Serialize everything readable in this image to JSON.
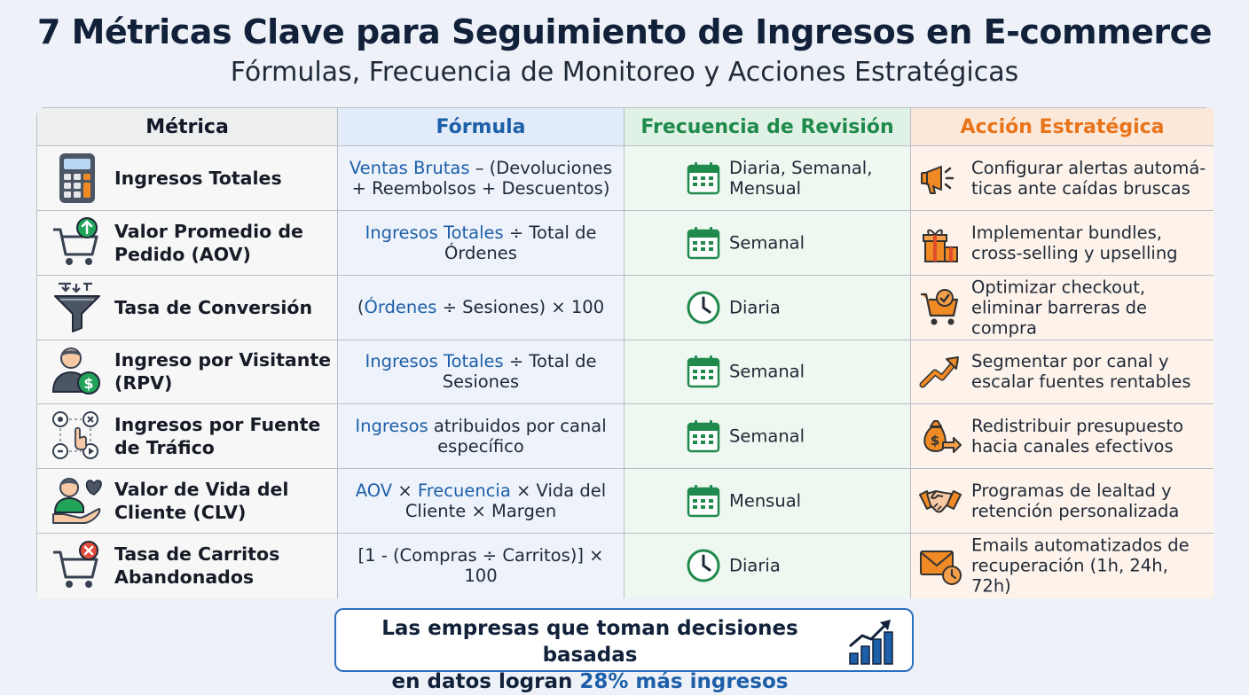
{
  "header": {
    "title": "7 Métricas Clave para Seguimiento de Ingresos en E-commerce",
    "subtitle": "Fórmulas, Frecuencia de Monitoreo y Acciones Estratégicas"
  },
  "table": {
    "columns": [
      "Métrica",
      "Fórmula",
      "Frecuencia de Revisión",
      "Acción Estratégica"
    ],
    "rows": [
      {
        "metric": "Ingresos Totales",
        "metric_icon": "calculator-icon",
        "formula_blue": "Ventas Brutas",
        "formula_rest": " – (Devoluciones + Reembolsos + Descuentos)",
        "frequency": "Diaria, Semanal, Mensual",
        "frequency_icon": "calendar-icon",
        "action": "Configurar alertas automá­ticas ante caídas bruscas",
        "action_icon": "megaphone-icon"
      },
      {
        "metric": "Valor Promedio de Pedido (AOV)",
        "metric_icon": "cart-up-arrow-icon",
        "formula_blue": "Ingresos Totales",
        "formula_rest": " ÷ Total de Órdenes",
        "frequency": "Semanal",
        "frequency_icon": "calendar-icon",
        "action": "Implementar bundles, cross-selling y upselling",
        "action_icon": "gift-boxes-icon"
      },
      {
        "metric": "Tasa de Conversión",
        "metric_icon": "funnel-icon",
        "formula_pre": "(",
        "formula_blue": "Órdenes",
        "formula_rest": " ÷ Sesiones) × 100",
        "frequency": "Diaria",
        "frequency_icon": "clock-icon",
        "action": "Optimizar checkout, eliminar barreras de compra",
        "action_icon": "cart-check-icon"
      },
      {
        "metric": "Ingreso por Visitante (RPV)",
        "metric_icon": "visitor-dollar-icon",
        "formula_blue": "Ingresos Totales",
        "formula_rest": " ÷ Total de Sesiones",
        "frequency": "Semanal",
        "frequency_icon": "calendar-icon",
        "action": "Segmentar por canal y escalar fuentes rentables",
        "action_icon": "trend-up-arrow-icon"
      },
      {
        "metric": "Ingresos por Fuente de Tráfico",
        "metric_icon": "traffic-sources-icon",
        "formula_blue": "Ingresos",
        "formula_rest": " atribuidos por canal específico",
        "frequency": "Semanal",
        "frequency_icon": "calendar-icon",
        "action": "Redistribuir presupuesto hacia canales efectivos",
        "action_icon": "money-bag-arrow-icon"
      },
      {
        "metric": "Valor de Vida del Cliente (CLV)",
        "metric_icon": "customer-heart-icon",
        "formula_blue": "AOV",
        "formula_mid": " × ",
        "formula_blue2": "Frecuencia",
        "formula_rest": " × Vida del Cliente × Margen",
        "frequency": "Mensual",
        "frequency_icon": "calendar-icon",
        "action": "Programas de lealtad y retención personalizada",
        "action_icon": "handshake-icon"
      },
      {
        "metric": "Tasa de Carritos Abandonados",
        "metric_icon": "cart-x-icon",
        "formula_plain": "[1 - (Compras ÷ Carritos)] × 100",
        "frequency": "Diaria",
        "frequency_icon": "clock-icon",
        "action": "Emails automatizados de recuperación (1h, 24h, 72h)",
        "action_icon": "email-clock-icon"
      }
    ]
  },
  "callout": {
    "line1": "Las empresas que toman decisiones basadas",
    "line2_pre": "en datos logran ",
    "highlight": "28% más ingresos",
    "icon": "bar-chart-growth-icon"
  },
  "colors": {
    "formula_header": "#1d5fa8",
    "frequency_header": "#1f8a4c",
    "action_header": "#e8741c",
    "highlight": "#1d5fa8"
  }
}
